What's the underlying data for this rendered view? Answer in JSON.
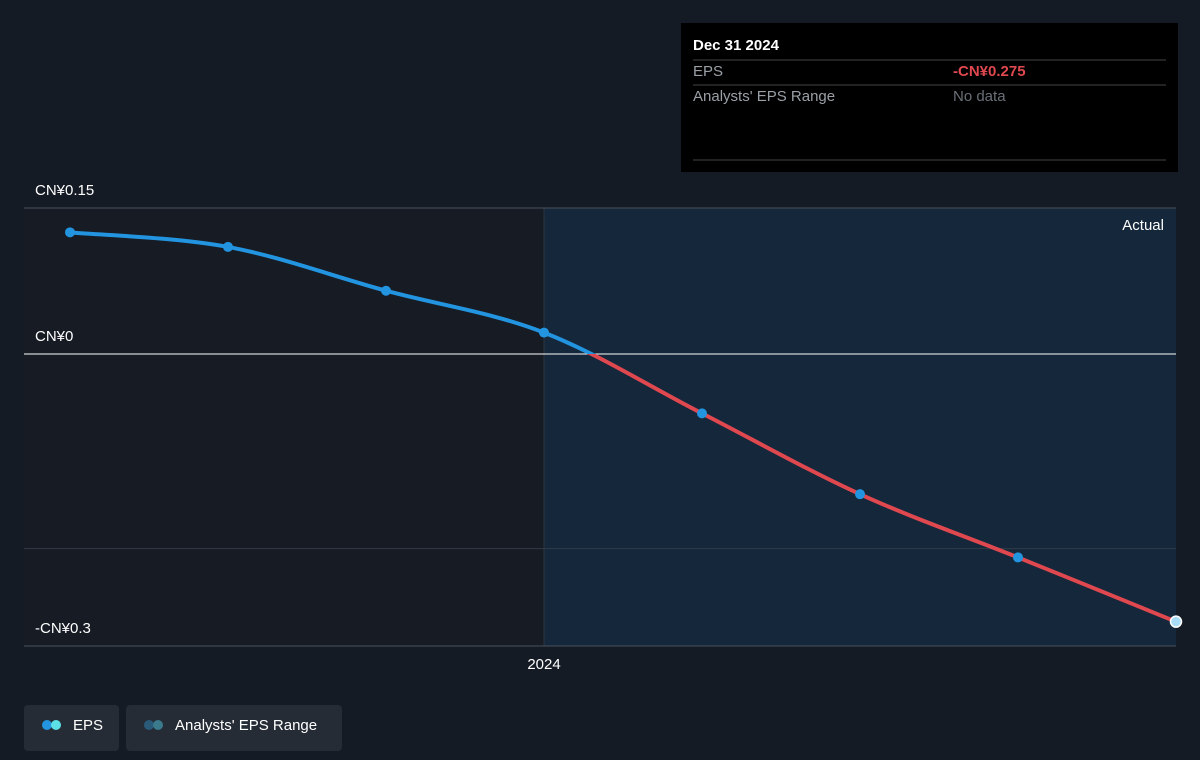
{
  "chart_data": {
    "type": "line",
    "categories": [
      null,
      null,
      null,
      "2024",
      null,
      null,
      null,
      null
    ],
    "series": [
      {
        "name": "EPS",
        "color": "#2394df",
        "negative_color": "#e0484f",
        "values": [
          0.125,
          0.11,
          0.065,
          0.022,
          -0.061,
          -0.144,
          -0.209,
          -0.275
        ]
      }
    ],
    "range_series": {
      "name": "Analysts' EPS Range",
      "color": "#3a7a8c"
    },
    "ylim": [
      -0.3,
      0.15
    ],
    "yticks": [
      {
        "value": 0.15,
        "label": "CN¥0.15"
      },
      {
        "value": 0,
        "label": "CN¥0"
      },
      {
        "value": -0.3,
        "label": "-CN¥0.3"
      }
    ],
    "ygrid": [
      -0.2
    ],
    "annotation": "Actual",
    "tooltip": {
      "date": "Dec 31 2024",
      "rows": [
        {
          "label": "EPS",
          "value": -0.275,
          "value_label": "-CN¥0.275"
        },
        {
          "label": "Analysts' EPS Range",
          "value_label": "No data"
        }
      ]
    }
  }
}
